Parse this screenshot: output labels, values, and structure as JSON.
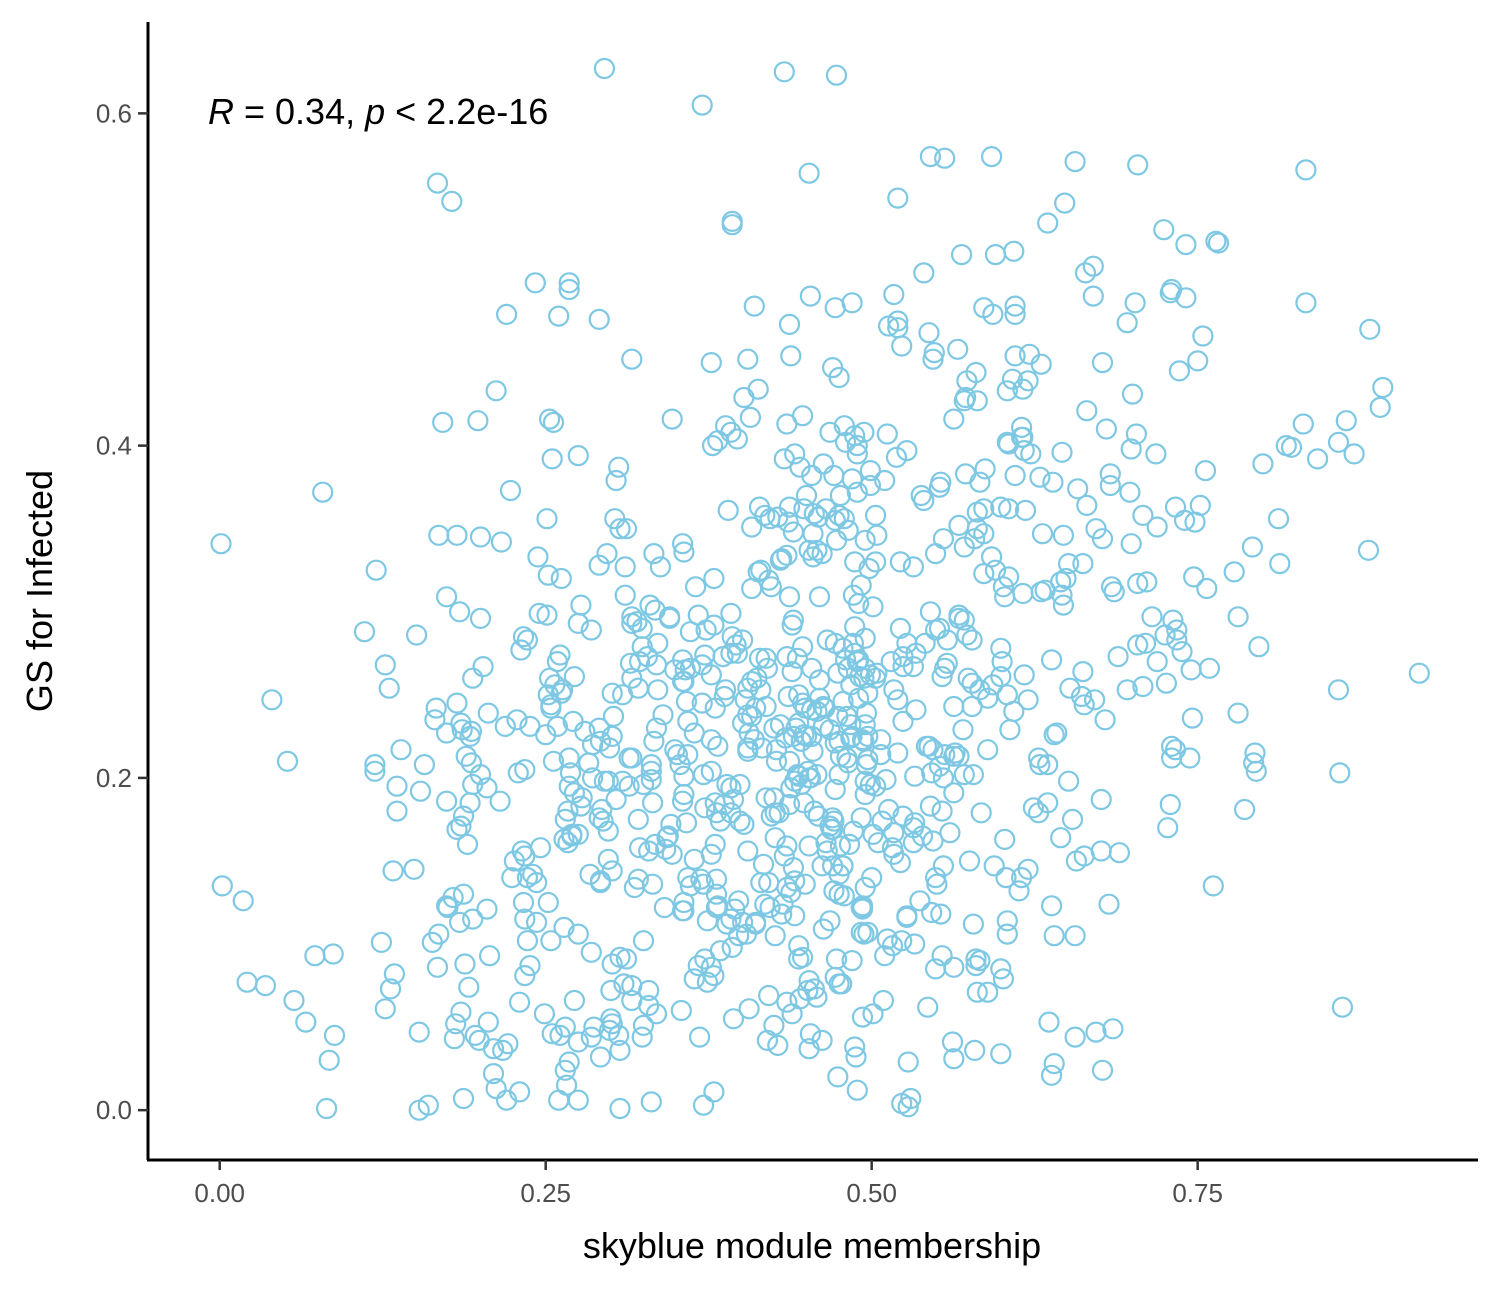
{
  "chart_data": {
    "type": "scatter",
    "xlabel": "skyblue module membership",
    "ylabel": "GS for Infected",
    "annotation": {
      "r_symbol": "R",
      "r_text": " = 0.34, ",
      "p_symbol": "p",
      "p_text": " < 2.2e-16"
    },
    "xlim": [
      -0.055,
      0.965
    ],
    "ylim": [
      -0.03,
      0.655
    ],
    "x_ticks": [
      0.0,
      0.25,
      0.5,
      0.75
    ],
    "x_tick_labels": [
      "0.00",
      "0.25",
      "0.50",
      "0.75"
    ],
    "y_ticks": [
      0.0,
      0.2,
      0.4,
      0.6
    ],
    "y_tick_labels": [
      "0.0",
      "0.2",
      "0.4",
      "0.6"
    ],
    "grid": false,
    "legend": "none",
    "point_color": "#7EC8E3",
    "point_style": "open-circle",
    "n_points": 1000,
    "random_seed": 20240517,
    "highlighted_points": [
      [
        0.295,
        0.627
      ],
      [
        0.433,
        0.625
      ],
      [
        0.473,
        0.623
      ],
      [
        0.37,
        0.605
      ],
      [
        0.167,
        0.558
      ],
      [
        0.545,
        0.574
      ],
      [
        0.556,
        0.573
      ],
      [
        0.592,
        0.574
      ],
      [
        0.656,
        0.571
      ],
      [
        0.704,
        0.569
      ],
      [
        0.833,
        0.566
      ],
      [
        0.452,
        0.564
      ],
      [
        0.393,
        0.533
      ],
      [
        0.92,
        0.263
      ],
      [
        0.018,
        0.126
      ],
      [
        0.079,
        0.372
      ],
      [
        0.171,
        0.414
      ],
      [
        0.052,
        0.21
      ],
      [
        0.035,
        0.075
      ],
      [
        0.16,
        0.003
      ],
      [
        0.242,
        0.498
      ],
      [
        0.268,
        0.494
      ],
      [
        0.882,
        0.47
      ],
      [
        0.89,
        0.423
      ]
    ]
  }
}
